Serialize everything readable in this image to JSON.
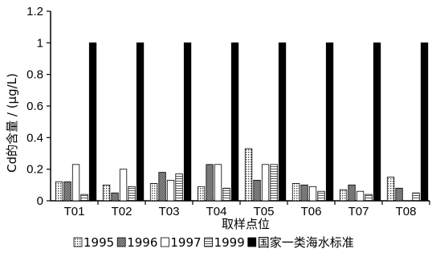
{
  "chart_data": {
    "type": "bar",
    "title": "",
    "xlabel": "取样点位",
    "ylabel": "Cd的含量 / (μg/L)",
    "ylim": [
      0,
      1.2
    ],
    "yticks": [
      "0",
      "0.2",
      "0.4",
      "0.6",
      "0.8",
      "1",
      "1.2"
    ],
    "ytick_values": [
      0,
      0.2,
      0.4,
      0.6,
      0.8,
      1.0,
      1.2
    ],
    "categories": [
      "T01",
      "T02",
      "T03",
      "T04",
      "T05",
      "T06",
      "T07",
      "T08"
    ],
    "series": [
      {
        "name": "1995",
        "pattern": "dots",
        "values": [
          0.12,
          0.1,
          0.11,
          0.09,
          0.33,
          0.11,
          0.07,
          0.15
        ]
      },
      {
        "name": "1996",
        "pattern": "dense",
        "values": [
          0.12,
          0.05,
          0.18,
          0.23,
          0.13,
          0.1,
          0.1,
          0.08
        ]
      },
      {
        "name": "1997",
        "pattern": "empty",
        "values": [
          0.23,
          0.2,
          0.13,
          0.23,
          0.23,
          0.09,
          0.06,
          0.0
        ]
      },
      {
        "name": "1999",
        "pattern": "hlines",
        "values": [
          0.04,
          0.09,
          0.17,
          0.08,
          0.23,
          0.06,
          0.04,
          0.05
        ]
      },
      {
        "name": "国家一类海水标准",
        "pattern": "solid",
        "values": [
          1.0,
          1.0,
          1.0,
          1.0,
          1.0,
          1.0,
          1.0,
          1.0
        ]
      }
    ],
    "legend_position": "bottom",
    "grid": false
  },
  "colors": {
    "axis": "#000000",
    "standard_bar": "#000000"
  }
}
